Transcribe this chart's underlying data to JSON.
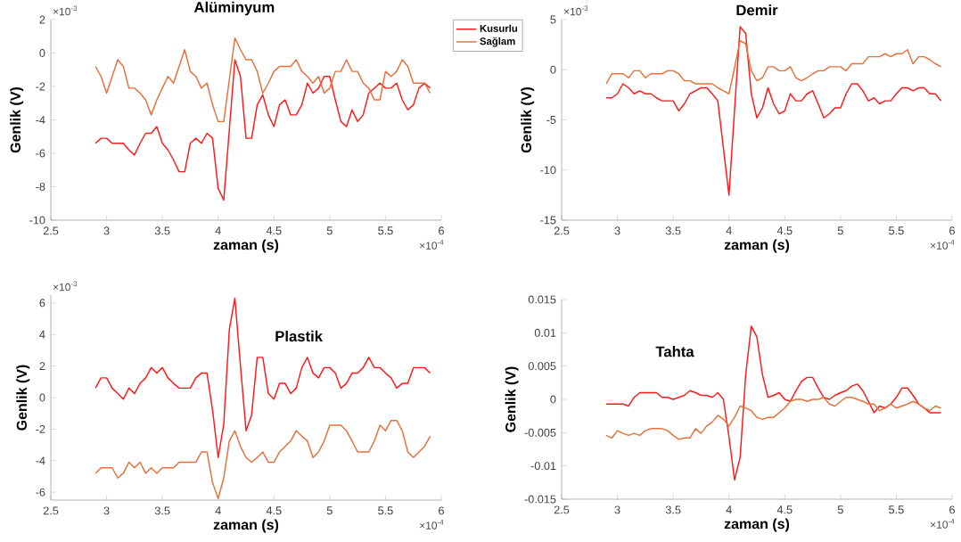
{
  "chart_data": [
    {
      "type": "line",
      "title": "Alüminyum",
      "xlabel": "zaman (s)",
      "ylabel": "Genlik (V)",
      "annotations": [
        "×10$^{-3}$",
        "×10$^{-4}$"
      ],
      "legend": "top right",
      "x": [
        2.9,
        2.95,
        3.0,
        3.05,
        3.1,
        3.15,
        3.2,
        3.25,
        3.3,
        3.35,
        3.4,
        3.45,
        3.5,
        3.55,
        3.6,
        3.65,
        3.7,
        3.75,
        3.8,
        3.85,
        3.9,
        3.95,
        4.0,
        4.05,
        4.1,
        4.15,
        4.2,
        4.25,
        4.3,
        4.35,
        4.4,
        4.45,
        4.5,
        4.55,
        4.6,
        4.65,
        4.7,
        4.75,
        4.8,
        4.85,
        4.9,
        4.95,
        5.0,
        5.05,
        5.1,
        5.15,
        5.2,
        5.25,
        5.3,
        5.35,
        5.4,
        5.45,
        5.5,
        5.55,
        5.6,
        5.65,
        5.7,
        5.75,
        5.8,
        5.85,
        5.9
      ],
      "xlim": [
        2.5,
        6
      ],
      "xticks": [
        2.5,
        3,
        3.5,
        4,
        4.5,
        5,
        5.5,
        6
      ],
      "ylim": [
        -10,
        2
      ],
      "yticks": [
        -10,
        -8,
        -6,
        -4,
        -2,
        0,
        2
      ],
      "series": [
        {
          "name": "Kusurlu",
          "color": "#ff1a1a",
          "values": [
            -5.4,
            -5.1,
            -5.1,
            -5.4,
            -5.4,
            -5.4,
            -5.8,
            -6.1,
            -5.4,
            -4.8,
            -4.8,
            -4.4,
            -5.4,
            -5.8,
            -6.4,
            -7.1,
            -7.1,
            -5.4,
            -5.1,
            -5.4,
            -4.8,
            -5.1,
            -8.1,
            -8.8,
            -4.6,
            -0.4,
            -1.4,
            -5.1,
            -5.1,
            -3.1,
            -2.5,
            -3.7,
            -4.4,
            -3.1,
            -2.8,
            -3.7,
            -3.7,
            -3.1,
            -1.8,
            -2.4,
            -2.1,
            -1.4,
            -1.4,
            -2.8,
            -4.1,
            -4.4,
            -3.4,
            -4.1,
            -3.7,
            -2.4,
            -2.1,
            -1.8,
            -2.1,
            -2.1,
            -1.8,
            -2.8,
            -3.4,
            -3.1,
            -2.1,
            -1.8,
            -2.1
          ]
        },
        {
          "name": "Sağlam",
          "color": "#e5713d",
          "values": [
            -0.8,
            -1.4,
            -2.4,
            -1.4,
            -0.4,
            -0.8,
            -2.1,
            -2.1,
            -2.4,
            -2.8,
            -3.7,
            -2.8,
            -2.1,
            -1.4,
            -1.8,
            -0.8,
            0.2,
            -1.1,
            -1.4,
            -2.1,
            -1.8,
            -3.1,
            -4.1,
            -4.1,
            -1.6,
            0.9,
            0.2,
            -0.4,
            -0.4,
            -1.1,
            -2.4,
            -1.8,
            -1.1,
            -0.8,
            -0.8,
            -0.8,
            -0.4,
            -1.1,
            -1.4,
            -1.8,
            -1.4,
            -2.4,
            -2.1,
            -1.1,
            -1.1,
            -0.4,
            -1.1,
            -1.1,
            -1.8,
            -2.1,
            -2.8,
            -2.8,
            -1.1,
            -1.4,
            -1.1,
            -0.4,
            -0.8,
            -1.8,
            -1.8,
            -1.8,
            -2.4
          ]
        }
      ]
    },
    {
      "type": "line",
      "title": "Demir",
      "xlabel": "zaman (s)",
      "ylabel": "Genlik (V)",
      "annotations": [
        "×10$^{-3}$",
        "×10$^{-4}$"
      ],
      "x": [
        2.9,
        2.95,
        3.0,
        3.05,
        3.1,
        3.15,
        3.2,
        3.25,
        3.3,
        3.35,
        3.4,
        3.45,
        3.5,
        3.55,
        3.6,
        3.65,
        3.7,
        3.75,
        3.8,
        3.85,
        3.9,
        3.95,
        4.0,
        4.05,
        4.1,
        4.15,
        4.2,
        4.25,
        4.3,
        4.35,
        4.4,
        4.45,
        4.5,
        4.55,
        4.6,
        4.65,
        4.7,
        4.75,
        4.8,
        4.85,
        4.9,
        4.95,
        5.0,
        5.05,
        5.1,
        5.15,
        5.2,
        5.25,
        5.3,
        5.35,
        5.4,
        5.45,
        5.5,
        5.55,
        5.6,
        5.65,
        5.7,
        5.75,
        5.8,
        5.85,
        5.9
      ],
      "xlim": [
        2.5,
        6
      ],
      "xticks": [
        2.5,
        3,
        3.5,
        4,
        4.5,
        5,
        5.5,
        6
      ],
      "ylim": [
        -15,
        5
      ],
      "yticks": [
        -15,
        -10,
        -5,
        0,
        5
      ],
      "series": [
        {
          "color": "#ff1a1a",
          "values": [
            -2.8,
            -2.8,
            -2.4,
            -1.4,
            -1.8,
            -2.4,
            -2.1,
            -2.4,
            -2.4,
            -2.8,
            -3.1,
            -3.1,
            -3.1,
            -4.1,
            -3.4,
            -2.4,
            -2.1,
            -1.8,
            -1.8,
            -2.4,
            -3.1,
            -7.8,
            -12.5,
            -4.0,
            4.3,
            3.6,
            -2.4,
            -4.8,
            -3.8,
            -1.8,
            -3.4,
            -4.4,
            -4.1,
            -2.4,
            -3.1,
            -3.1,
            -2.4,
            -2.1,
            -3.4,
            -4.8,
            -4.4,
            -3.8,
            -3.8,
            -2.4,
            -1.4,
            -1.4,
            -2.1,
            -3.1,
            -2.8,
            -3.4,
            -3.1,
            -3.1,
            -2.4,
            -1.8,
            -1.8,
            -2.1,
            -1.8,
            -1.8,
            -2.4,
            -2.4,
            -3.1
          ]
        },
        {
          "color": "#e5713d",
          "values": [
            -1.4,
            -0.4,
            -0.4,
            -0.4,
            -0.8,
            -0.1,
            -0.1,
            -0.8,
            -0.4,
            -0.4,
            -0.4,
            -0.1,
            -0.1,
            -0.4,
            -1.1,
            -1.1,
            -1.4,
            -1.4,
            -1.4,
            -1.4,
            -1.8,
            -2.1,
            -2.4,
            0.2,
            2.9,
            2.6,
            -0.1,
            -1.1,
            -0.8,
            0.3,
            0.3,
            -0.1,
            -0.1,
            0.3,
            -0.8,
            -1.1,
            -0.8,
            -0.4,
            -0.1,
            -0.1,
            0.3,
            0.3,
            0.3,
            -0.1,
            0.6,
            0.6,
            0.6,
            1.3,
            1.3,
            1.3,
            1.6,
            1.3,
            1.6,
            1.6,
            2.0,
            0.6,
            1.3,
            1.3,
            1.0,
            0.6,
            0.3
          ]
        }
      ]
    },
    {
      "type": "line",
      "title": "Plastik",
      "xlabel": "zaman (s)",
      "ylabel": "Genlik (V)",
      "annotations": [
        "×10$^{-3}$",
        "×10$^{-4}$"
      ],
      "x": [
        2.9,
        2.95,
        3.0,
        3.05,
        3.1,
        3.15,
        3.2,
        3.25,
        3.3,
        3.35,
        3.4,
        3.45,
        3.5,
        3.55,
        3.6,
        3.65,
        3.7,
        3.75,
        3.8,
        3.85,
        3.9,
        3.95,
        4.0,
        4.05,
        4.1,
        4.15,
        4.2,
        4.25,
        4.3,
        4.35,
        4.4,
        4.45,
        4.5,
        4.55,
        4.6,
        4.65,
        4.7,
        4.75,
        4.8,
        4.85,
        4.9,
        4.95,
        5.0,
        5.05,
        5.1,
        5.15,
        5.2,
        5.25,
        5.3,
        5.35,
        5.4,
        5.45,
        5.5,
        5.55,
        5.6,
        5.65,
        5.7,
        5.75,
        5.8,
        5.85,
        5.9
      ],
      "xlim": [
        2.5,
        6
      ],
      "xticks": [
        2.5,
        3,
        3.5,
        4,
        4.5,
        5,
        5.5,
        6
      ],
      "ylim": [
        -6.5,
        6.5
      ],
      "yticks": [
        -6,
        -4,
        -2,
        0,
        2,
        4,
        6
      ],
      "series": [
        {
          "color": "#ff1a1a",
          "values": [
            0.6,
            1.25,
            1.25,
            0.6,
            0.25,
            -0.1,
            0.6,
            0.25,
            0.9,
            1.25,
            1.9,
            1.55,
            1.9,
            1.25,
            0.9,
            0.6,
            0.6,
            0.6,
            1.25,
            1.55,
            1.55,
            -0.8,
            -3.8,
            -1.7,
            4.3,
            6.3,
            2.0,
            -2.1,
            -1.1,
            2.55,
            2.55,
            0.25,
            -0.1,
            0.9,
            0.9,
            0.25,
            0.6,
            1.9,
            2.55,
            1.55,
            1.25,
            1.9,
            1.9,
            1.55,
            0.6,
            0.9,
            1.55,
            1.55,
            1.9,
            2.55,
            1.9,
            1.9,
            1.55,
            1.25,
            0.6,
            0.9,
            0.9,
            1.9,
            1.9,
            1.9,
            1.55
          ]
        },
        {
          "color": "#e5713d",
          "values": [
            -4.8,
            -4.45,
            -4.45,
            -4.45,
            -5.1,
            -4.8,
            -4.1,
            -4.45,
            -4.1,
            -4.8,
            -4.45,
            -4.8,
            -4.45,
            -4.45,
            -4.45,
            -4.1,
            -4.1,
            -4.1,
            -4.1,
            -3.45,
            -3.45,
            -5.4,
            -6.4,
            -5.1,
            -2.75,
            -2.1,
            -3.1,
            -3.8,
            -4.1,
            -3.8,
            -3.45,
            -4.1,
            -4.1,
            -3.45,
            -3.1,
            -2.75,
            -2.1,
            -2.45,
            -2.75,
            -3.8,
            -3.45,
            -2.75,
            -1.75,
            -1.75,
            -1.75,
            -2.1,
            -2.75,
            -3.45,
            -3.45,
            -3.45,
            -2.75,
            -1.75,
            -2.1,
            -1.45,
            -1.45,
            -2.1,
            -3.45,
            -3.8,
            -3.45,
            -3.1,
            -2.45
          ]
        }
      ]
    },
    {
      "type": "line",
      "title": "Tahta",
      "xlabel": "zaman (s)",
      "ylabel": "Genlik (V)",
      "annotations": [
        "×10$^{-4}$"
      ],
      "x": [
        2.9,
        2.95,
        3.0,
        3.05,
        3.1,
        3.15,
        3.2,
        3.25,
        3.3,
        3.35,
        3.4,
        3.45,
        3.5,
        3.55,
        3.6,
        3.65,
        3.7,
        3.75,
        3.8,
        3.85,
        3.9,
        3.95,
        4.0,
        4.05,
        4.1,
        4.15,
        4.2,
        4.25,
        4.3,
        4.35,
        4.4,
        4.45,
        4.5,
        4.55,
        4.6,
        4.65,
        4.7,
        4.75,
        4.8,
        4.85,
        4.9,
        4.95,
        5.0,
        5.05,
        5.1,
        5.15,
        5.2,
        5.25,
        5.3,
        5.35,
        5.4,
        5.45,
        5.5,
        5.55,
        5.6,
        5.65,
        5.7,
        5.75,
        5.8,
        5.85,
        5.9
      ],
      "xlim": [
        2.5,
        6
      ],
      "xticks": [
        2.5,
        3,
        3.5,
        4,
        4.5,
        5,
        5.5,
        6
      ],
      "ylim": [
        -0.015,
        0.015
      ],
      "yticks": [
        -0.015,
        -0.01,
        -0.005,
        0,
        0.005,
        0.01,
        0.015
      ],
      "series": [
        {
          "color": "#ff1a1a",
          "values": [
            -0.0007,
            -0.0007,
            -0.0007,
            -0.0007,
            -0.001,
            0.0003,
            0.001,
            0.001,
            0.001,
            0.001,
            0.0003,
            0.0003,
            0,
            0.0003,
            0.0006,
            0.0013,
            0.001,
            0.0006,
            0.0006,
            0.0003,
            0.001,
            0,
            -0.0056,
            -0.0121,
            -0.0087,
            0.0037,
            0.011,
            0.0094,
            0.0037,
            0.0003,
            0.0006,
            0.001,
            0,
            -0.0003,
            0.0013,
            0.0027,
            0.0033,
            0.0033,
            0.0017,
            0.0003,
            0,
            0.0006,
            0.001,
            0.0013,
            0.002,
            0.0023,
            0.0013,
            -0.0003,
            -0.002,
            -0.001,
            -0.0013,
            -0.0007,
            0.0003,
            0.0017,
            0.0017,
            0.0006,
            -0.0007,
            -0.0013,
            -0.002,
            -0.002,
            -0.002
          ]
        },
        {
          "color": "#e5713d",
          "values": [
            -0.0054,
            -0.0058,
            -0.0047,
            -0.0051,
            -0.0054,
            -0.0051,
            -0.0054,
            -0.0047,
            -0.0044,
            -0.0044,
            -0.0044,
            -0.0047,
            -0.0054,
            -0.006,
            -0.0058,
            -0.0058,
            -0.0044,
            -0.0051,
            -0.004,
            -0.0034,
            -0.0024,
            -0.003,
            -0.004,
            -0.0027,
            -0.001,
            -0.0013,
            -0.0017,
            -0.0027,
            -0.003,
            -0.0027,
            -0.0027,
            -0.002,
            -0.0013,
            -0.0003,
            0,
            0,
            -0.0003,
            0,
            0,
            0.0003,
            -0.0007,
            -0.001,
            -0.0003,
            0.0003,
            0.0003,
            0,
            -0.0003,
            -0.0007,
            -0.0007,
            -0.0017,
            -0.0013,
            -0.0007,
            -0.0013,
            -0.001,
            -0.0007,
            -0.0003,
            -0.0007,
            -0.0013,
            -0.0017,
            -0.001,
            -0.0013
          ]
        }
      ]
    }
  ]
}
